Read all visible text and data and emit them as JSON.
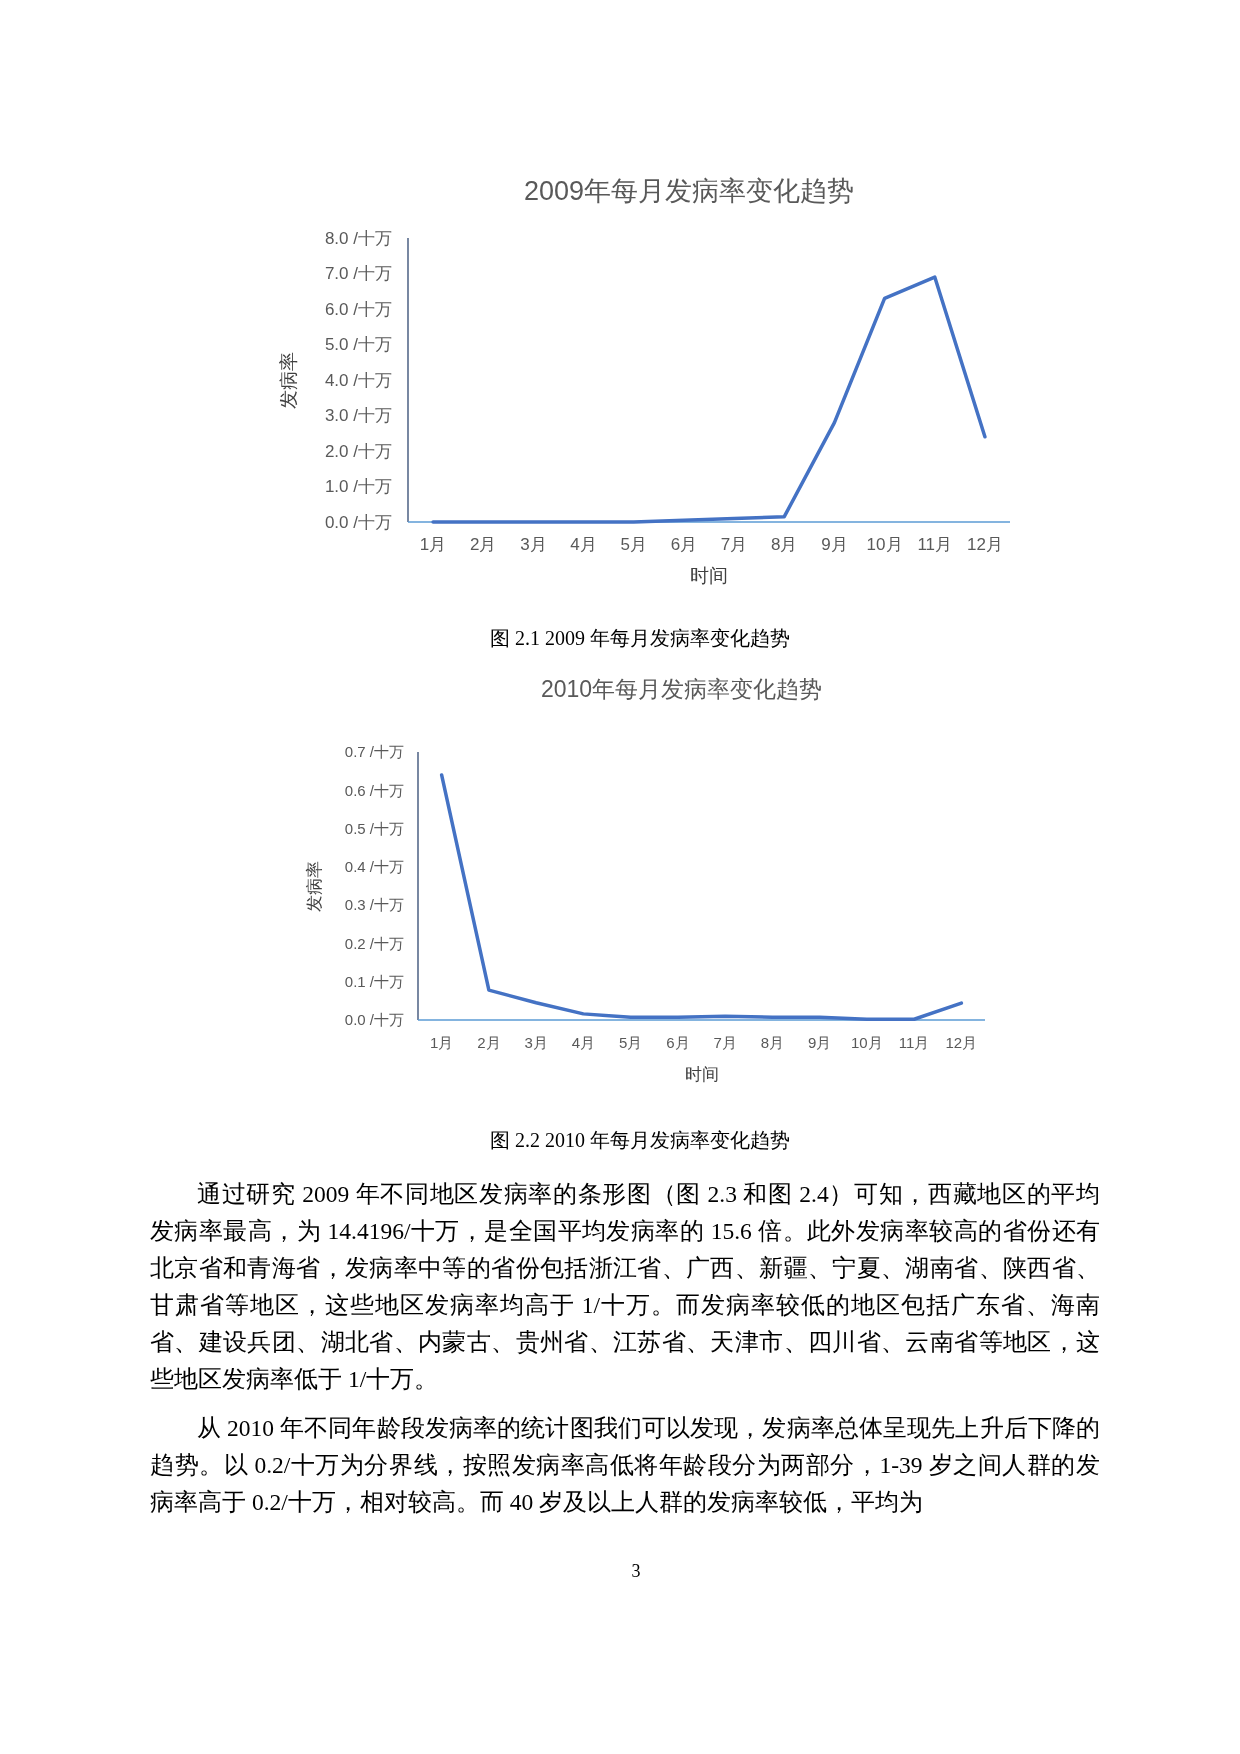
{
  "chart_data": [
    {
      "type": "line",
      "title": "2009年每月发病率变化趋势",
      "xlabel": "时间",
      "ylabel": "发病率",
      "categories": [
        "1月",
        "2月",
        "3月",
        "4月",
        "5月",
        "6月",
        "7月",
        "8月",
        "9月",
        "10月",
        "11月",
        "12月"
      ],
      "series": [
        {
          "color": "#4472c4",
          "values": [
            0,
            0,
            0,
            0,
            0,
            0.05,
            0.1,
            0.15,
            2.8,
            6.3,
            6.9,
            2.4
          ]
        }
      ],
      "ylim": [
        0,
        8
      ],
      "yticks": [
        {
          "value": 0,
          "label": "0.0 /十万"
        },
        {
          "value": 1,
          "label": "1.0 /十万"
        },
        {
          "value": 2,
          "label": "2.0 /十万"
        },
        {
          "value": 3,
          "label": "3.0 /十万"
        },
        {
          "value": 4,
          "label": "4.0 /十万"
        },
        {
          "value": 5,
          "label": "5.0 /十万"
        },
        {
          "value": 6,
          "label": "6.0 /十万"
        },
        {
          "value": 7,
          "label": "7.0 /十万"
        },
        {
          "value": 8,
          "label": "8.0 /十万"
        }
      ],
      "grid": false,
      "annotations": [
        "图 2.1 2009 年每月发病率变化趋势"
      ]
    },
    {
      "type": "line",
      "title": "2010年每月发病率变化趋势",
      "xlabel": "时间",
      "ylabel": "发病率",
      "categories": [
        "1月",
        "2月",
        "3月",
        "4月",
        "5月",
        "6月",
        "7月",
        "8月",
        "9月",
        "10月",
        "11月",
        "12月"
      ],
      "series": [
        {
          "color": "#4472c4",
          "values": [
            0.64,
            0.078,
            0.045,
            0.016,
            0.007,
            0.007,
            0.01,
            0.007,
            0.007,
            0.002,
            0.002,
            0.044
          ]
        }
      ],
      "ylim": [
        0,
        0.7
      ],
      "yticks": [
        {
          "value": 0,
          "label": "0.0 /十万"
        },
        {
          "value": 0.1,
          "label": "0.1 /十万"
        },
        {
          "value": 0.2,
          "label": "0.2 /十万"
        },
        {
          "value": 0.3,
          "label": "0.3 /十万"
        },
        {
          "value": 0.4,
          "label": "0.4 /十万"
        },
        {
          "value": 0.5,
          "label": "0.5 /十万"
        },
        {
          "value": 0.6,
          "label": "0.6 /十万"
        },
        {
          "value": 0.7,
          "label": "0.7 /十万"
        }
      ],
      "grid": false,
      "annotations": [
        "图 2.2 2010 年每月发病率变化趋势",
        "通过研究 2009 年不同地区发病率的条形图（图 2.3 和图 2.4）可知，西藏地区的平均发病率最高，为 14.4196/十万，是全国平均发病率的 15.6 倍。此外发病率较高的省份还有北京省和青海省，发病率中等的省份包括浙江省、广西、新疆、宁夏、湖南省、陕西省、甘肃省等地区，这些地区发病率均高于 1/十万。而发病率较低的地区包括广东省、海南省、建设兵团、湖北省、内蒙古、贵州省、江苏省、天津市、四川省、云南省等地区，这些地区发病率低于 1/十万。",
        "从 2010 年不同年龄段发病率的统计图我们可以发现，发病率总体呈现先上升后下降的趋势。以 0.2/十万为分界线，按照发病率高低将年龄段分为两部分，1-39 岁之间人群的发病率高于 0.2/十万，相对较高。而 40 岁及以上人群的发病率较低，平均为",
        "3"
      ]
    }
  ]
}
